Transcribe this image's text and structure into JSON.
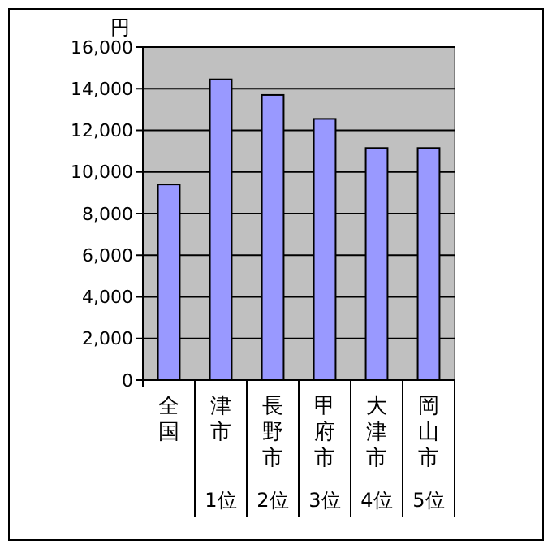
{
  "chart_data": {
    "type": "bar",
    "ylabel": "円",
    "categories": [
      "全国",
      "津市",
      "長野市",
      "甲府市",
      "大津市",
      "岡山市"
    ],
    "values": [
      9400,
      14450,
      13700,
      12550,
      11150,
      11150
    ],
    "color": "#9999ff",
    "ylim": [
      0,
      16000
    ],
    "yticks": [
      {
        "value": 0,
        "label": "0"
      },
      {
        "value": 2000,
        "label": "2,000"
      },
      {
        "value": 4000,
        "label": "4,000"
      },
      {
        "value": 6000,
        "label": "6,000"
      },
      {
        "value": 8000,
        "label": "8,000"
      },
      {
        "value": 10000,
        "label": "10,000"
      },
      {
        "value": 12000,
        "label": "12,000"
      },
      {
        "value": 14000,
        "label": "14,000"
      },
      {
        "value": 16000,
        "label": "16,000"
      }
    ],
    "grid": "y",
    "annotations": [
      "1位",
      "2位",
      "3位",
      "4位",
      "5位"
    ]
  }
}
